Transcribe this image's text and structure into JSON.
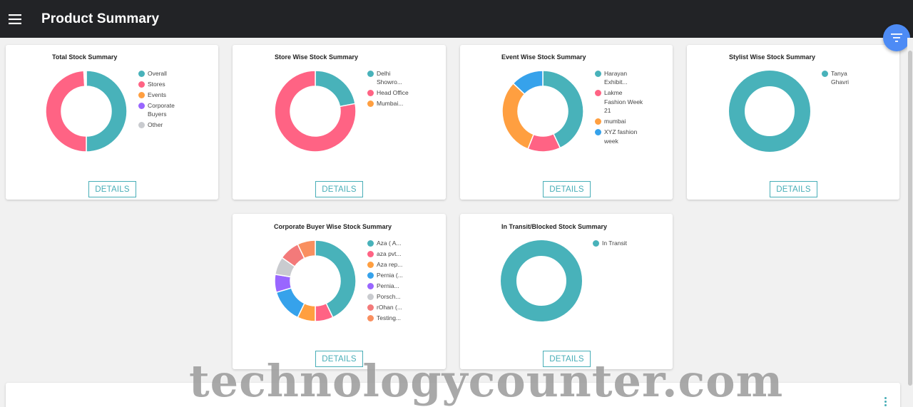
{
  "header": {
    "title": "Product Summary",
    "menu_icon": "hamburger-icon"
  },
  "fab": {
    "icon": "filter-icon",
    "color": "#4d8bf5"
  },
  "colors": {
    "teal": "#48b2ba",
    "pink": "#ff6384",
    "orange": "#ff9f40",
    "purple": "#9966ff",
    "grey": "#c9cbcf",
    "blue": "#36a2eb",
    "salmon": "#f37a7a",
    "coral": "#f98f5f",
    "accent": "#48aeb7"
  },
  "cards": [
    {
      "title": "Total Stock Summary",
      "details_label": "DETAILS",
      "chart_data": {
        "type": "pie",
        "title": "Total Stock Summary",
        "categories": [
          "Overall",
          "Stores",
          "Events",
          "Corporate Buyers",
          "Other"
        ],
        "values": [
          50,
          49,
          0.3,
          0.2,
          0.5
        ]
      },
      "legend": [
        {
          "label": "Overall",
          "color": "#48b2ba"
        },
        {
          "label": "Stores",
          "color": "#ff6384"
        },
        {
          "label": "Events",
          "color": "#ff9f40"
        },
        {
          "label": "Corporate Buyers",
          "color": "#9966ff"
        },
        {
          "label": "Other",
          "color": "#c9cbcf"
        }
      ]
    },
    {
      "title": "Store Wise Stock Summary",
      "details_label": "DETAILS",
      "chart_data": {
        "type": "pie",
        "title": "Store Wise Stock Summary",
        "categories": [
          "Delhi Showro...",
          "Head Office",
          "Mumbai..."
        ],
        "values": [
          22,
          78,
          0
        ]
      },
      "legend": [
        {
          "label": "Delhi Showro...",
          "color": "#48b2ba"
        },
        {
          "label": "Head Office",
          "color": "#ff6384"
        },
        {
          "label": "Mumbai...",
          "color": "#ff9f40"
        }
      ]
    },
    {
      "title": "Event Wise Stock Summary",
      "details_label": "DETAILS",
      "chart_data": {
        "type": "pie",
        "title": "Event Wise Stock Summary",
        "categories": [
          "Harayan Exhibit...",
          "Lakme Fashion Week 21",
          "mumbai",
          "XYZ fashion week"
        ],
        "values": [
          43,
          13,
          31,
          13
        ]
      },
      "legend": [
        {
          "label": "Harayan Exhibit...",
          "color": "#48b2ba"
        },
        {
          "label": "Lakme Fashion Week 21",
          "color": "#ff6384"
        },
        {
          "label": "mumbai",
          "color": "#ff9f40"
        },
        {
          "label": "XYZ fashion week",
          "color": "#36a2eb"
        }
      ]
    },
    {
      "title": "Stylist Wise Stock Summary",
      "details_label": "DETAILS",
      "chart_data": {
        "type": "pie",
        "title": "Stylist Wise Stock Summary",
        "categories": [
          "Tanya Ghavri"
        ],
        "values": [
          100
        ]
      },
      "legend": [
        {
          "label": "Tanya Ghavri",
          "color": "#48b2ba"
        }
      ]
    },
    {
      "title": "Corporate Buyer Wise Stock Summary",
      "details_label": "DETAILS",
      "chart_data": {
        "type": "pie",
        "title": "Corporate Buyer Wise Stock Summary",
        "categories": [
          "Aza ( A...",
          "aza pvt...",
          "Aza rep...",
          "Pernia (...",
          "Pernia...",
          "Porsch...",
          "rOhan (...",
          "Testing..."
        ],
        "values": [
          42,
          7,
          7,
          13,
          7,
          7,
          8,
          7
        ]
      },
      "legend": [
        {
          "label": "Aza ( A...",
          "color": "#48b2ba"
        },
        {
          "label": "aza pvt...",
          "color": "#ff6384"
        },
        {
          "label": "Aza rep...",
          "color": "#ff9f40"
        },
        {
          "label": "Pernia (...",
          "color": "#36a2eb"
        },
        {
          "label": "Pernia...",
          "color": "#9966ff"
        },
        {
          "label": "Porsch...",
          "color": "#c9cbcf"
        },
        {
          "label": "rOhan (...",
          "color": "#f37a7a"
        },
        {
          "label": "Testing...",
          "color": "#f98f5f"
        }
      ]
    },
    {
      "title": "In Transit/Blocked Stock Summary",
      "details_label": "DETAILS",
      "chart_data": {
        "type": "pie",
        "title": "In Transit/Blocked Stock Summary",
        "categories": [
          "In Transit"
        ],
        "values": [
          100
        ]
      },
      "legend": [
        {
          "label": "In Transit",
          "color": "#48b2ba"
        }
      ]
    }
  ],
  "bottom_card": {
    "menu_icon": "kebab-menu-icon"
  },
  "watermark": "technologycounter.com"
}
